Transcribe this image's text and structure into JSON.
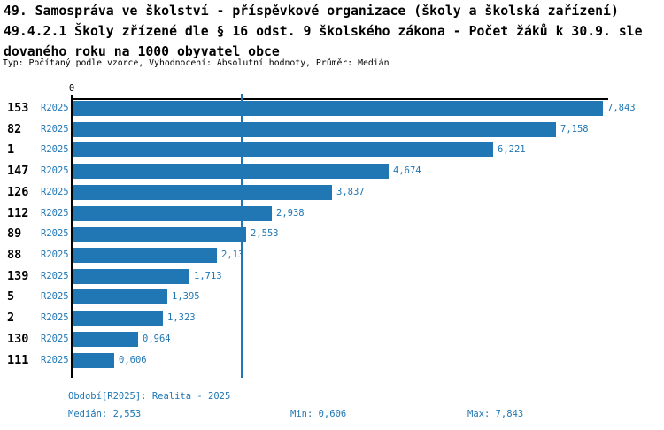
{
  "header": {
    "title_lines": [
      "49. Samospráva ve školství - příspěvkové organizace (školy a školská zařízení)",
      "49.4.2.1 Školy zřízené dle § 16 odst. 9 školského zákona - Počet žáků k 30.9. sle",
      "dovaného roku na 1000 obyvatel obce"
    ],
    "subtitle": "Typ: Počítaný podle vzorce, Vyhodnocení: Absolutní hodnoty, Průměr: Medián"
  },
  "chart_data": {
    "type": "bar",
    "orientation": "horizontal",
    "axis_zero_label": "0",
    "series_label": "R2025",
    "categories": [
      "153",
      "82",
      "1",
      "147",
      "126",
      "112",
      "89",
      "88",
      "139",
      "5",
      "2",
      "130",
      "111"
    ],
    "values": [
      7.843,
      7.158,
      6.221,
      4.674,
      3.837,
      2.938,
      2.553,
      2.13,
      1.713,
      1.395,
      1.323,
      0.964,
      0.606
    ],
    "value_labels": [
      "7,843",
      "7,158",
      "6,221",
      "4,674",
      "3,837",
      "2,938",
      "2,553",
      "2,13",
      "1,713",
      "1,395",
      "1,323",
      "0,964",
      "0,606"
    ],
    "median_value": 2.553,
    "xlim": [
      0,
      7.9
    ],
    "bar_color": "#2077b4",
    "median_line_color": "#2077b4",
    "label_color": "#2077b4",
    "title": "49.4.2.1 Školy zřízené dle § 16 odst. 9 školského zákona - Počet žáků k 30.9. sledovaného roku na 1000 obyvatel obce",
    "legend_position": "none",
    "grid": false
  },
  "footer": {
    "period_label": "Období[R2025]: Realita - 2025",
    "median_label": "Medián: 2,553",
    "min_label": "Min: 0,606",
    "max_label": "Max: 7,843"
  }
}
